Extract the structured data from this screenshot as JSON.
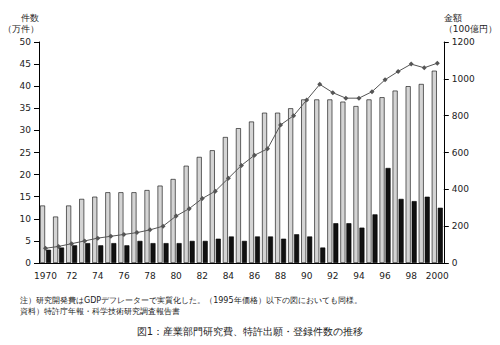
{
  "chart_data": {
    "type": "bar",
    "title": "図1：産業部門研究費、特許出願・登録件数の推移",
    "y_label": "件数\n（万件）",
    "y2_label": "金額\n（100億円）",
    "annotations": [
      "注）研究開発費はGDPデフレーターで実質化した。（1995年価格）以下の図においても同様。",
      "資料）特許庁年報・科学技術研究調査報告書"
    ],
    "categories": [
      "1970",
      null,
      "72",
      null,
      "74",
      null,
      "76",
      null,
      "78",
      null,
      "80",
      null,
      "82",
      null,
      "84",
      null,
      "86",
      null,
      "88",
      null,
      "90",
      null,
      "92",
      null,
      "94",
      null,
      "96",
      null,
      "98",
      null,
      "2000"
    ],
    "series": [
      {
        "type": "bar",
        "color": "#d4d4d4",
        "values": [
          13,
          10.5,
          13,
          14.5,
          15,
          16,
          16,
          16,
          16.5,
          17.5,
          19,
          22,
          24,
          25.5,
          28.5,
          30.5,
          32,
          34,
          34,
          35,
          37,
          37,
          37,
          36.5,
          35.5,
          37,
          37.5,
          39,
          40,
          40.5,
          43.5
        ]
      },
      {
        "type": "bar",
        "color": "#111111",
        "values": [
          3,
          3.5,
          4,
          4.5,
          4,
          4.5,
          4,
          5,
          4.5,
          4.5,
          4.5,
          5,
          5,
          5.5,
          6,
          5,
          6,
          6,
          5.5,
          6.5,
          6,
          3.5,
          9,
          9,
          8,
          11,
          21.5,
          14.5,
          14,
          15,
          12.5
        ]
      },
      {
        "type": "line",
        "color": "#555555",
        "marker": "diamond",
        "axis": "y2",
        "values": [
          80,
          90,
          105,
          120,
          135,
          145,
          155,
          165,
          180,
          200,
          255,
          295,
          350,
          390,
          460,
          530,
          585,
          620,
          750,
          800,
          885,
          970,
          925,
          895,
          895,
          930,
          995,
          1040,
          1080,
          1060,
          1085
        ]
      }
    ],
    "ylim": [
      0,
      50
    ],
    "yticks": [
      0,
      5,
      10,
      15,
      20,
      25,
      30,
      35,
      40,
      45,
      50
    ],
    "y2lim": [
      0,
      1200
    ],
    "y2ticks": [
      0,
      200,
      400,
      600,
      800,
      1000,
      1200
    ],
    "grid": false
  }
}
